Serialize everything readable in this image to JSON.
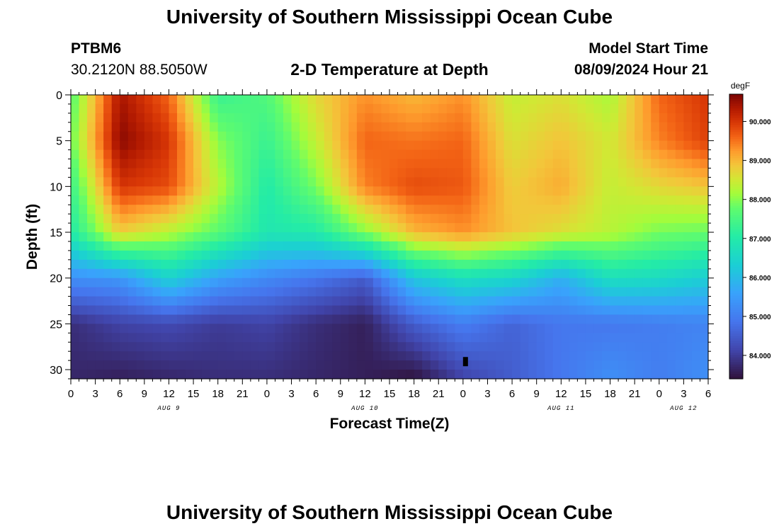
{
  "header": {
    "title": "University of Southern Mississippi Ocean Cube",
    "station_id": "PTBM6",
    "station_coords": "30.2120N  88.5050W",
    "chart_subtitle": "2-D Temperature at Depth",
    "model_start_label": "Model Start Time",
    "model_start_value": "08/09/2024 Hour 21"
  },
  "footer": {
    "title": "University of Southern Mississippi Ocean Cube"
  },
  "chart_data": {
    "type": "heatmap",
    "title": "2-D Temperature at Depth",
    "xlabel": "Forecast Time(Z)",
    "ylabel": "Depth (ft)",
    "colorbar_unit": "degF",
    "x_hours_range": [
      0,
      78
    ],
    "y_range": [
      0,
      31
    ],
    "y_ticks": [
      0,
      5,
      10,
      15,
      20,
      25,
      30
    ],
    "x_tick_labels": [
      "0",
      "3",
      "6",
      "9",
      "12",
      "15",
      "18",
      "21",
      "0",
      "3",
      "6",
      "9",
      "12",
      "15",
      "18",
      "21",
      "0",
      "3",
      "6",
      "9",
      "12",
      "15",
      "18",
      "21",
      "0",
      "3",
      "6"
    ],
    "x_tick_hours_start": 0,
    "x_tick_step_hours": 3,
    "date_labels": [
      {
        "text": "AUG 9",
        "hour": 12
      },
      {
        "text": "AUG 10",
        "hour": 36
      },
      {
        "text": "AUG 11",
        "hour": 60
      },
      {
        "text": "AUG 12",
        "hour": 75
      }
    ],
    "colorbar_ticks": [
      "84.000",
      "85.000",
      "86.000",
      "87.000",
      "88.000",
      "89.000",
      "90.000"
    ],
    "colorbar_tick_values": [
      84,
      85,
      86,
      87,
      88,
      89,
      90
    ],
    "value_range": [
      83.4,
      90.7
    ],
    "grid": {
      "x_hours": [
        0,
        6,
        12,
        18,
        24,
        30,
        36,
        42,
        48,
        54,
        60,
        66,
        72,
        78
      ],
      "y_depths": [
        0,
        5,
        10,
        15,
        20,
        25,
        31
      ],
      "values": [
        [
          87.6,
          90.4,
          89.6,
          87.3,
          87.6,
          88.7,
          89.3,
          89.0,
          89.3,
          88.4,
          88.6,
          88.2,
          89.6,
          90.0
        ],
        [
          87.8,
          90.6,
          90.0,
          88.0,
          87.3,
          88.4,
          89.6,
          89.5,
          89.6,
          88.6,
          88.9,
          88.5,
          89.4,
          89.9
        ],
        [
          87.3,
          90.0,
          89.8,
          88.3,
          87.0,
          87.9,
          89.4,
          89.8,
          89.7,
          88.8,
          89.1,
          88.4,
          88.7,
          88.9
        ],
        [
          87.0,
          88.8,
          88.3,
          87.7,
          86.9,
          87.0,
          88.0,
          89.0,
          89.3,
          88.9,
          88.6,
          88.3,
          87.9,
          87.8
        ],
        [
          85.3,
          85.4,
          86.4,
          85.6,
          85.2,
          84.9,
          84.5,
          86.2,
          86.7,
          86.5,
          85.8,
          86.7,
          86.6,
          86.3
        ],
        [
          83.8,
          84.1,
          84.2,
          84.0,
          84.1,
          83.8,
          83.6,
          84.5,
          85.0,
          84.6,
          84.9,
          84.9,
          85.0,
          85.1
        ],
        [
          83.7,
          83.6,
          83.7,
          83.8,
          83.8,
          83.7,
          83.6,
          83.4,
          84.1,
          84.5,
          84.9,
          85.3,
          85.0,
          85.3
        ]
      ]
    },
    "annotation_label": ""
  }
}
